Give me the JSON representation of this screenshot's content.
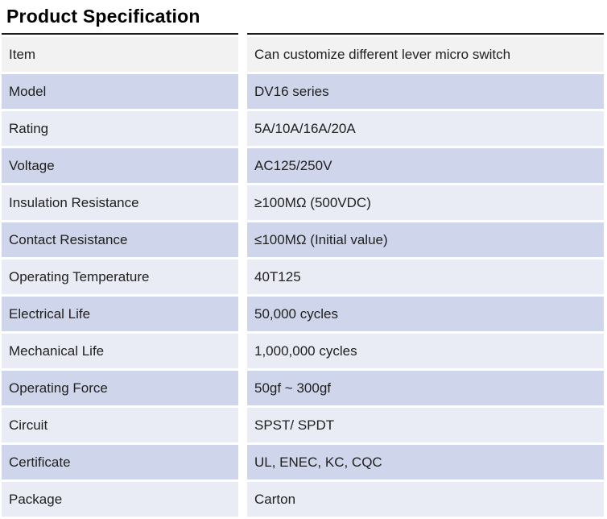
{
  "title": "Product Specification",
  "table": {
    "columns": [
      "label",
      "value"
    ],
    "rows": [
      {
        "label": "Item",
        "value": "Can customize different lever micro switch"
      },
      {
        "label": "Model",
        "value": "DV16 series"
      },
      {
        "label": "Rating",
        "value": "5A/10A/16A/20A"
      },
      {
        "label": "Voltage",
        "value": "AC125/250V"
      },
      {
        "label": "Insulation Resistance",
        "value": "≥100MΩ (500VDC)"
      },
      {
        "label": "Contact Resistance",
        "value": "≤100MΩ (Initial value)"
      },
      {
        "label": "Operating Temperature",
        "value": "40T125"
      },
      {
        "label": "Electrical Life",
        "value": "50,000 cycles"
      },
      {
        "label": "Mechanical Life",
        "value": "1,000,000 cycles"
      },
      {
        "label": "Operating Force",
        "value": "50gf ~ 300gf"
      },
      {
        "label": "Circuit",
        "value": "SPST/ SPDT"
      },
      {
        "label": "Certificate",
        "value": "UL, ENEC, KC, CQC"
      },
      {
        "label": "Package",
        "value": "Carton"
      }
    ],
    "colors": {
      "header_row_bg": "#f2f2f2",
      "band_dark": "#cfd5ea",
      "band_light": "#e9ebf5",
      "top_border": "#1a1a1a"
    }
  }
}
